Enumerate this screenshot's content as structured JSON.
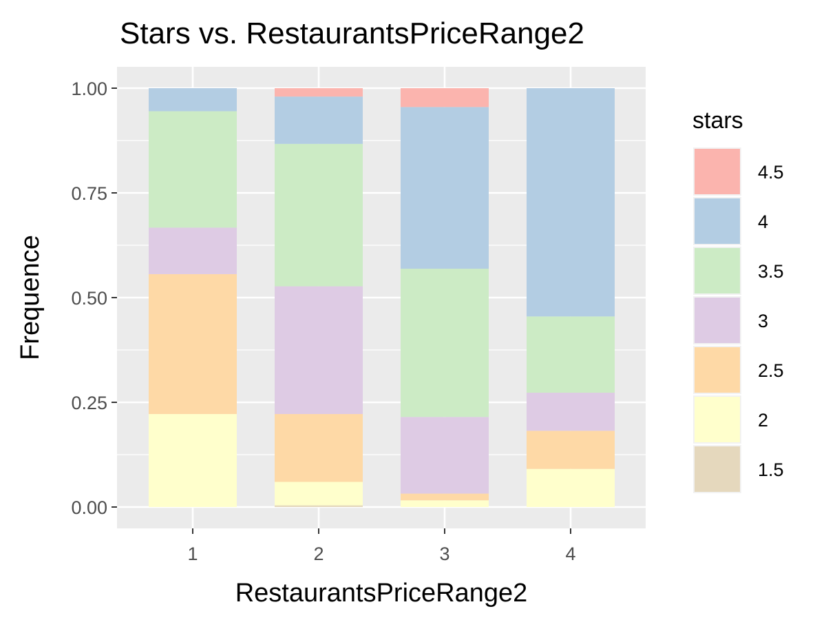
{
  "chart_data": {
    "type": "bar",
    "stacked": true,
    "title": "Stars vs. RestaurantsPriceRange2",
    "xlabel": "RestaurantsPriceRange2",
    "ylabel": "Frequence",
    "categories": [
      "1",
      "2",
      "3",
      "4"
    ],
    "ylim": [
      0,
      1
    ],
    "yticks": [
      "0.00",
      "0.25",
      "0.50",
      "0.75",
      "1.00"
    ],
    "ytick_values": [
      0,
      0.25,
      0.5,
      0.75,
      1.0
    ],
    "grid": true,
    "legend": {
      "title": "stars",
      "position": "right"
    },
    "series": [
      {
        "name": "1.5",
        "color": "#E5D8BD",
        "values": [
          0.0,
          0.004,
          0.0,
          0.0
        ]
      },
      {
        "name": "2",
        "color": "#FFFFCC",
        "values": [
          0.222,
          0.056,
          0.016,
          0.091
        ]
      },
      {
        "name": "2.5",
        "color": "#FED9A6",
        "values": [
          0.334,
          0.162,
          0.016,
          0.091
        ]
      },
      {
        "name": "3",
        "color": "#DECBE4",
        "values": [
          0.111,
          0.305,
          0.183,
          0.091
        ]
      },
      {
        "name": "3.5",
        "color": "#CCEBC5",
        "values": [
          0.278,
          0.34,
          0.354,
          0.182
        ]
      },
      {
        "name": "4",
        "color": "#B3CDE3",
        "values": [
          0.055,
          0.113,
          0.386,
          0.545
        ]
      },
      {
        "name": "4.5",
        "color": "#FBB4AE",
        "values": [
          0.0,
          0.02,
          0.045,
          0.0
        ]
      }
    ]
  }
}
